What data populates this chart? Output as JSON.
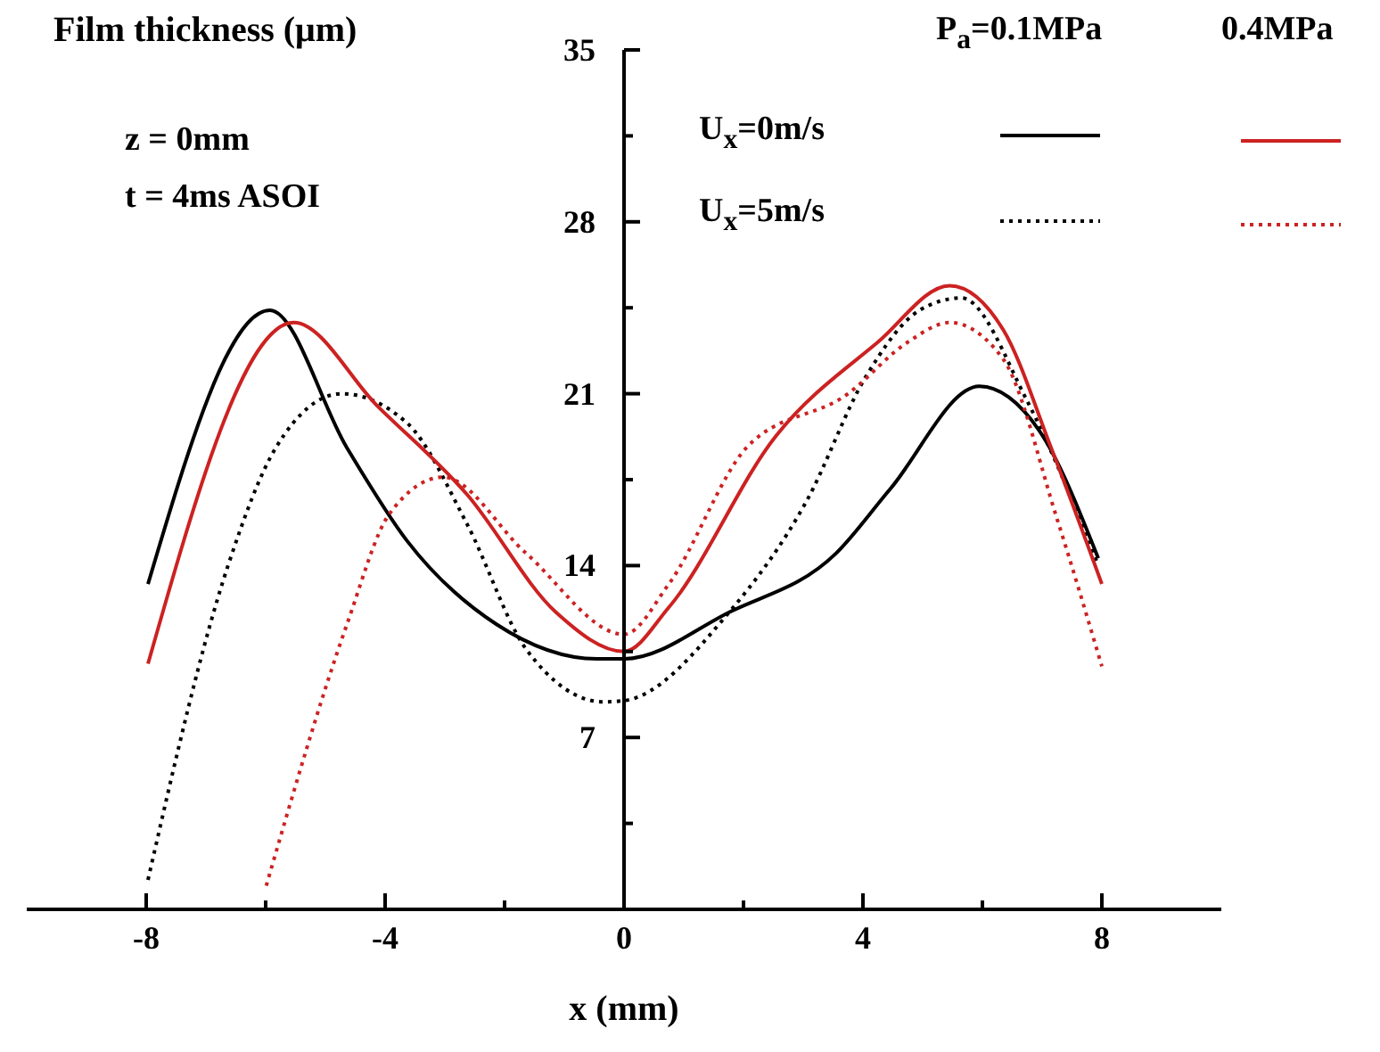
{
  "chart_data": {
    "type": "line",
    "xlabel": "x (mm)",
    "ylabel": "Film thickness (μm)",
    "xlim": [
      -10,
      10
    ],
    "xticks": [
      -8,
      {
        "value": -6,
        "label": null
      },
      -4,
      {
        "value": -2,
        "label": null
      },
      0,
      {
        "value": 2,
        "label": null
      },
      4,
      {
        "value": 6,
        "label": null
      },
      8
    ],
    "ylim": [
      0,
      35
    ],
    "yticks": [
      {
        "value": 0,
        "label": null
      },
      {
        "value": 3.5,
        "label": null
      },
      7,
      {
        "value": 10.5,
        "label": null
      },
      14,
      {
        "value": 17.5,
        "label": null
      },
      21,
      {
        "value": 24.5,
        "label": null
      },
      28,
      {
        "value": 31.5,
        "label": null
      },
      35
    ],
    "annotations": [
      "z = 0mm",
      "t = 4ms ASOI",
      "P$_{a}$=0.1MPa",
      "0.4MPa",
      "U$_{x}$=0m/s",
      "U$_{x}$=5m/s"
    ],
    "series": [
      {
        "color": "#000000",
        "line_style": "solid",
        "x": [
          -7.97,
          -5.93,
          -4.64,
          -3.63,
          -2.13,
          -0.45,
          0,
          1.76,
          3.55,
          4.45,
          5.95,
          6.95,
          7.94
        ],
        "values": [
          13.25,
          24.4,
          18.8,
          15.0,
          11.6,
          10.2,
          10.2,
          12.1,
          14.5,
          17.1,
          21.3,
          19.5,
          14.3
        ]
      },
      {
        "color": "#000000",
        "line_style": "dotted",
        "x": [
          -7.97,
          -6.63,
          -5.83,
          -4.73,
          -3.63,
          -2.63,
          -1.64,
          -0.34,
          0,
          1.76,
          3.05,
          4.05,
          4.95,
          5.65,
          6.75,
          7.94
        ],
        "values": [
          1.2,
          14.0,
          18.8,
          21.0,
          19.8,
          15.7,
          10.6,
          8.45,
          8.5,
          12.1,
          16.6,
          21.7,
          24.4,
          24.9,
          20.7,
          14.0
        ]
      },
      {
        "color": "#cc2222",
        "line_style": "solid",
        "x": [
          -7.97,
          -5.53,
          -4.13,
          -2.63,
          -1.14,
          0,
          0.75,
          2.55,
          4.25,
          5.45,
          6.35,
          7.15,
          8.0
        ],
        "values": [
          10.0,
          23.9,
          20.5,
          16.9,
          12.1,
          10.5,
          12.3,
          19.3,
          23.1,
          25.4,
          23.6,
          18.8,
          13.25
        ]
      },
      {
        "color": "#cc2222",
        "line_style": "dotted",
        "x": [
          -5.99,
          -4.64,
          -3.93,
          -3.03,
          -1.64,
          0,
          0.75,
          2.05,
          3.75,
          4.75,
          5.45,
          6.35,
          7.25,
          8.0
        ],
        "values": [
          0.96,
          11.6,
          16.1,
          17.6,
          14.5,
          11.2,
          13.25,
          18.8,
          21.0,
          23.1,
          23.9,
          22.4,
          15.9,
          9.9
        ]
      }
    ]
  }
}
